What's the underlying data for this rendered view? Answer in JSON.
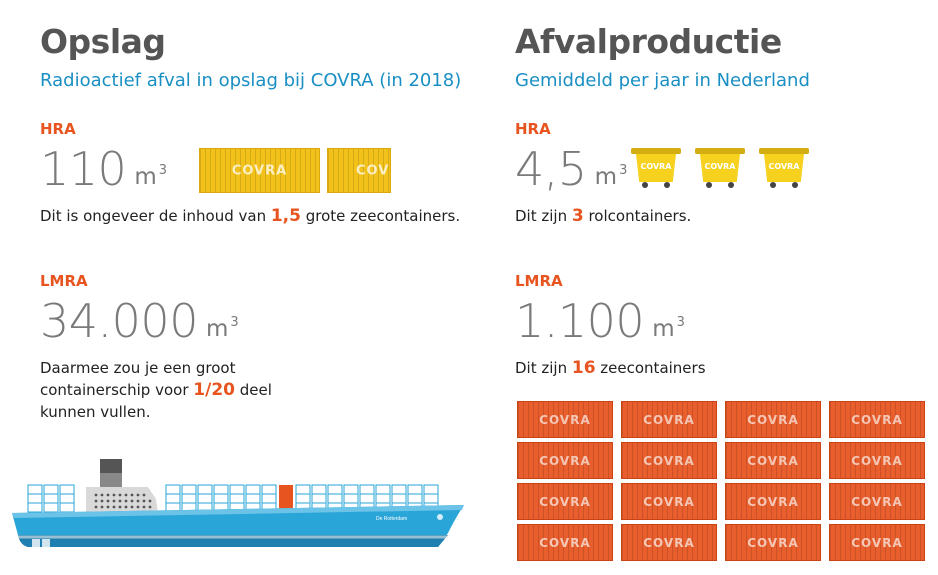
{
  "left": {
    "title": "Opslag",
    "subtitle": "Radioactief afval in opslag bij COVRA (in 2018)",
    "hra": {
      "label": "HRA",
      "value": "110",
      "unit": "m",
      "unit_sup": "3",
      "text_before": "Dit is ongeveer de inhoud van ",
      "highlight": "1,5",
      "text_after": " grote zeecontainers.",
      "container_text": "COVRA"
    },
    "lmra": {
      "label": "LMRA",
      "value": "34.000",
      "unit": "m",
      "unit_sup": "3",
      "line1": "Daarmee zou je een groot",
      "line2_before": "containerschip voor ",
      "highlight": "1/20",
      "line2_after": " deel",
      "line3": "kunnen vullen.",
      "ship_name": "De Rotterdam"
    }
  },
  "right": {
    "title": "Afvalproductie",
    "subtitle": "Gemiddeld per jaar in Nederland",
    "hra": {
      "label": "HRA",
      "value": "4,5",
      "unit": "m",
      "unit_sup": "3",
      "text_before": "Dit zijn ",
      "highlight": "3",
      "text_after": " rolcontainers.",
      "bin_text": "COVRA"
    },
    "lmra": {
      "label": "LMRA",
      "value": "1.100",
      "unit": "m",
      "unit_sup": "3",
      "text_before": "Dit zijn ",
      "highlight": "16",
      "text_after": " zeecontainers",
      "container_text": "COVRA"
    }
  },
  "colors": {
    "title": "#555555",
    "subtitle": "#1a8fc4",
    "accent": "#e8541f",
    "yellow": "#f2c21a",
    "ship": "#2aa5d8"
  }
}
